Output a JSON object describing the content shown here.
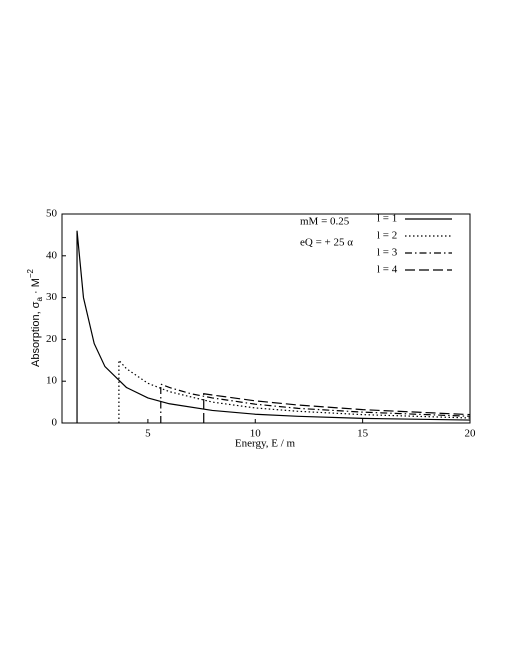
{
  "chart_data": {
    "type": "line",
    "x_label": "Energy,  E / m",
    "y_label_parts": [
      "Absorption,  σ",
      "a",
      " · M",
      "−2"
    ],
    "annotations": [
      "mM = 0.25",
      "eQ = + 25 α"
    ],
    "xlim": [
      1,
      20
    ],
    "xticks": [
      5,
      10,
      15,
      20
    ],
    "ylim": [
      0,
      50
    ],
    "yticks": [
      0,
      10,
      20,
      30,
      40,
      50
    ],
    "series": [
      {
        "name": "l = 1",
        "color": "#000000",
        "style": "solid",
        "x": [
          1.7,
          1.7,
          2,
          2.5,
          3,
          4,
          5,
          6,
          8,
          10,
          12,
          15,
          20
        ],
        "values": [
          0,
          46,
          30,
          19,
          13.5,
          8.5,
          6,
          4.6,
          3,
          2.1,
          1.6,
          1.1,
          0.7
        ]
      },
      {
        "name": "l = 2",
        "color": "#000000",
        "style": "dotted",
        "x": [
          3.65,
          3.65,
          4,
          5,
          6,
          8,
          10,
          12,
          15,
          20
        ],
        "values": [
          0,
          15,
          13,
          9.5,
          7.5,
          5,
          3.6,
          2.8,
          2,
          1.2
        ]
      },
      {
        "name": "l = 3",
        "color": "#000000",
        "style": "dashdot",
        "x": [
          5.6,
          5.6,
          6,
          7,
          8,
          10,
          12,
          15,
          20
        ],
        "values": [
          0,
          9.3,
          8.5,
          7,
          6,
          4.5,
          3.5,
          2.6,
          1.6
        ]
      },
      {
        "name": "l = 4",
        "color": "#000000",
        "style": "dashed",
        "x": [
          7.6,
          7.6,
          8,
          9,
          10,
          12,
          15,
          20
        ],
        "values": [
          0,
          7,
          6.7,
          6,
          5.3,
          4.3,
          3.2,
          2
        ]
      }
    ]
  }
}
